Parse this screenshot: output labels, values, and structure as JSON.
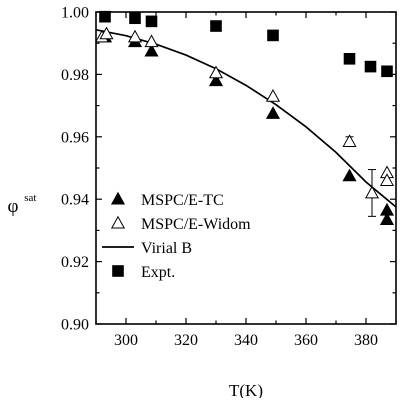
{
  "chart_data": {
    "type": "scatter",
    "title": "",
    "xlabel": "T(K)",
    "ylabel": "φ",
    "ylabel_superscript": "sat",
    "xlim": [
      290,
      390
    ],
    "ylim": [
      0.9,
      1.0
    ],
    "x_ticks": [
      300,
      320,
      340,
      360,
      380
    ],
    "y_ticks": [
      0.9,
      0.92,
      0.94,
      0.96,
      0.98,
      1.0
    ],
    "y_tick_labels": [
      "0.90",
      "0.92",
      "0.94",
      "0.96",
      "0.98",
      "1.00"
    ],
    "grid": false,
    "legend_position": "bottom-left",
    "series": [
      {
        "name": "MSPC/E-TC",
        "marker": "filled-triangle",
        "points": [
          {
            "x": 293,
            "y": 0.992
          },
          {
            "x": 303,
            "y": 0.9905
          },
          {
            "x": 308.5,
            "y": 0.9875
          },
          {
            "x": 330,
            "y": 0.978
          },
          {
            "x": 349,
            "y": 0.9675
          },
          {
            "x": 374.5,
            "y": 0.9475
          },
          {
            "x": 387,
            "y": 0.9365
          },
          {
            "x": 387,
            "y": 0.9335
          }
        ]
      },
      {
        "name": "MSPC/E-Widom",
        "marker": "open-triangle",
        "points": [
          {
            "x": 292,
            "y": 0.992
          },
          {
            "x": 293.5,
            "y": 0.993
          },
          {
            "x": 303,
            "y": 0.992
          },
          {
            "x": 308.5,
            "y": 0.9905
          },
          {
            "x": 330,
            "y": 0.9805
          },
          {
            "x": 349,
            "y": 0.973
          },
          {
            "x": 374.5,
            "y": 0.9585,
            "err": 0.0015
          },
          {
            "x": 382,
            "y": 0.942,
            "err": 0.0075
          },
          {
            "x": 387,
            "y": 0.9485
          },
          {
            "x": 387,
            "y": 0.946
          }
        ]
      },
      {
        "name": "Virial B",
        "marker": "line",
        "points": [
          {
            "x": 290,
            "y": 0.9943
          },
          {
            "x": 300,
            "y": 0.9924
          },
          {
            "x": 310,
            "y": 0.9897
          },
          {
            "x": 320,
            "y": 0.9862
          },
          {
            "x": 330,
            "y": 0.9818
          },
          {
            "x": 340,
            "y": 0.9765
          },
          {
            "x": 350,
            "y": 0.9703
          },
          {
            "x": 360,
            "y": 0.9632
          },
          {
            "x": 370,
            "y": 0.955
          },
          {
            "x": 380,
            "y": 0.9455
          },
          {
            "x": 390,
            "y": 0.9375
          }
        ]
      },
      {
        "name": "Expt.",
        "marker": "filled-square",
        "points": [
          {
            "x": 293,
            "y": 0.9985
          },
          {
            "x": 303,
            "y": 0.998
          },
          {
            "x": 308.5,
            "y": 0.997
          },
          {
            "x": 330,
            "y": 0.9955
          },
          {
            "x": 349,
            "y": 0.9925
          },
          {
            "x": 374.5,
            "y": 0.985
          },
          {
            "x": 381.5,
            "y": 0.9825
          },
          {
            "x": 387,
            "y": 0.981
          }
        ]
      }
    ]
  }
}
